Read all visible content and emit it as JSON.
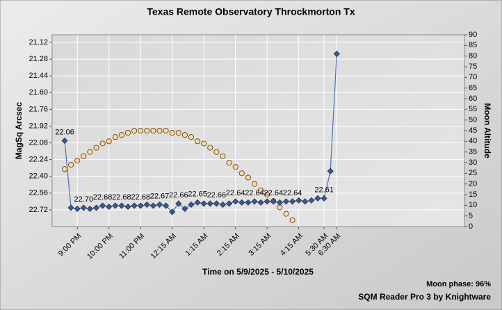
{
  "chart_data": {
    "type": "line",
    "title": "Texas Remote Observatory   Throckmorton Tx",
    "x_label": "Time on 5/9/2025 - 5/10/2025",
    "y_label": "MagSq Arcsec",
    "y2_label": "Moon Altitude",
    "annotations": [
      "Moon phase: 96%",
      "SQM Reader Pro 3 by Knightware"
    ],
    "categories": [
      null,
      null,
      "9:00 PM",
      null,
      null,
      null,
      null,
      "10:00 PM",
      null,
      null,
      null,
      null,
      "11:00 PM",
      null,
      null,
      null,
      null,
      "12:15 AM",
      null,
      null,
      null,
      null,
      "1:15 AM",
      null,
      null,
      null,
      null,
      "2:15 AM",
      null,
      null,
      null,
      null,
      "3:15 AM",
      null,
      null,
      null,
      null,
      "4:15 AM",
      null,
      null,
      null,
      "5:30 AM",
      null,
      "6:30 AM"
    ],
    "series": [
      {
        "color": "#4a6fb5",
        "values": [
          22.06,
          22.7,
          22.71,
          22.7,
          22.71,
          22.7,
          22.68,
          22.69,
          22.68,
          22.68,
          22.69,
          22.68,
          22.68,
          22.67,
          22.68,
          22.67,
          22.68,
          22.74,
          22.66,
          22.71,
          22.67,
          22.65,
          22.66,
          22.66,
          22.66,
          22.67,
          22.66,
          22.64,
          22.65,
          22.65,
          22.64,
          22.65,
          22.64,
          22.64,
          22.65,
          22.64,
          22.64,
          22.63,
          22.64,
          22.63,
          22.61,
          22.61,
          22.35,
          21.23
        ],
        "value_labels": [
          "22.06",
          null,
          null,
          "22.70",
          null,
          null,
          "22.68",
          null,
          null,
          "22.68",
          null,
          null,
          "22.68",
          null,
          null,
          "22.67",
          null,
          null,
          "22.66",
          null,
          null,
          "22.65",
          null,
          null,
          "22.66",
          null,
          null,
          "22.64",
          null,
          null,
          "22.64",
          null,
          null,
          "22.64",
          null,
          null,
          "22.64",
          null,
          null,
          null,
          null,
          "22.61",
          null,
          null
        ]
      },
      {
        "color": "#f7d9a8",
        "axis": "y2",
        "type": "scatter",
        "values": [
          27,
          29,
          31,
          33,
          35,
          37,
          39,
          40,
          42,
          43,
          44,
          45,
          45,
          45,
          45,
          45,
          45,
          44,
          44,
          43,
          42,
          40,
          39,
          37,
          35,
          33,
          30,
          28,
          25,
          23,
          20,
          17,
          15,
          12,
          9,
          6,
          3,
          null,
          null,
          null,
          null,
          null,
          null,
          null
        ]
      }
    ],
    "ylim": [
      22.88,
      21.047
    ],
    "yticks": [
      21.12,
      21.28,
      21.44,
      {
        "value": 21.6,
        "label": "21.60"
      },
      21.76,
      21.92,
      22.08,
      22.24,
      {
        "value": 22.4,
        "label": "22.40"
      },
      22.56,
      22.72
    ],
    "y2lim": [
      0,
      90
    ],
    "y2ticks": [
      0,
      5,
      10,
      15,
      20,
      25,
      30,
      35,
      40,
      45,
      50,
      55,
      60,
      65,
      70,
      75,
      80,
      85,
      90
    ],
    "grid": true
  }
}
